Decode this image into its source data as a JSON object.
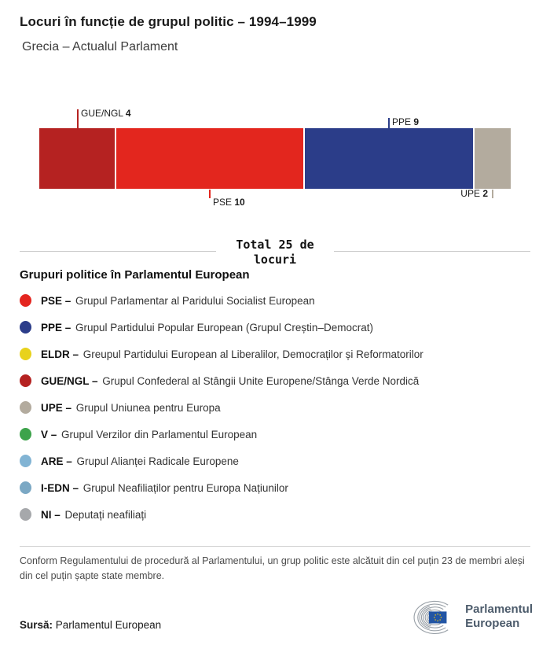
{
  "header": {
    "title": "Locuri în funcție de grupul politic – 1994–1999",
    "subtitle": "Grecia – Actualul Parlament"
  },
  "chart_data": {
    "type": "bar",
    "orientation": "horizontal-stacked",
    "title": "Locuri în funcție de grupul politic – 1994–1999",
    "subtitle": "Grecia – Actualul Parlament",
    "total": 25,
    "total_label": "Total 25 de locuri",
    "categories": [
      "GUE/NGL",
      "PSE",
      "PPE",
      "UPE"
    ],
    "values": [
      4,
      10,
      9,
      2
    ],
    "segments": [
      {
        "name": "GUE/NGL",
        "value": 4,
        "color": "#b52221"
      },
      {
        "name": "PSE",
        "value": 10,
        "color": "#e3261e"
      },
      {
        "name": "PPE",
        "value": 9,
        "color": "#2b3d89"
      },
      {
        "name": "UPE",
        "value": 2,
        "color": "#b3ab9e"
      }
    ],
    "legend_position": "below",
    "grid": false
  },
  "legend": {
    "heading": "Grupuri politice în Parlamentul European",
    "items": [
      {
        "abbr": "PSE –",
        "desc": "Grupul Parlamentar al Paridului Socialist European",
        "color": "#e4251f"
      },
      {
        "abbr": "PPE –",
        "desc": "Grupul Partidului Popular European (Grupul Creștin–Democrat)",
        "color": "#2c3d8a"
      },
      {
        "abbr": "ELDR –",
        "desc": "Greupul Partidului European al Liberalilor, Democraților și Reformatorilor",
        "color": "#e8d21c"
      },
      {
        "abbr": "GUE/NGL –",
        "desc": "Grupul Confederal al Stângii Unite Europene/Stânga Verde Nordică",
        "color": "#b52221"
      },
      {
        "abbr": "UPE –",
        "desc": "Grupul Uniunea pentru Europa",
        "color": "#b3ab9e"
      },
      {
        "abbr": "V –",
        "desc": "Grupul Verzilor din Parlamentul European",
        "color": "#3da34b"
      },
      {
        "abbr": "ARE –",
        "desc": "Grupul Alianței Radicale Europene",
        "color": "#82b4d4"
      },
      {
        "abbr": "I-EDN –",
        "desc": "Grupul Neafiliaților pentru Europa Națiunilor",
        "color": "#7ba8c4"
      },
      {
        "abbr": "NI –",
        "desc": "Deputați neafiliați",
        "color": "#a6a8ab"
      }
    ]
  },
  "footer": {
    "note": "Conform Regulamentului de procedură al Parlamentului, un grup politic este alcătuit din cel puțin 23 de membri aleși din cel puțin șapte state membre.",
    "source_label": "Sursă:",
    "source_value": "Parlamentul European",
    "logo": {
      "line1": "Parlamentul",
      "line2": "European",
      "text_color": "#4c5b6b",
      "arc_color": "#9aa1a8",
      "flag_blue": "#2255a4",
      "star_yellow": "#ffcc00"
    }
  }
}
